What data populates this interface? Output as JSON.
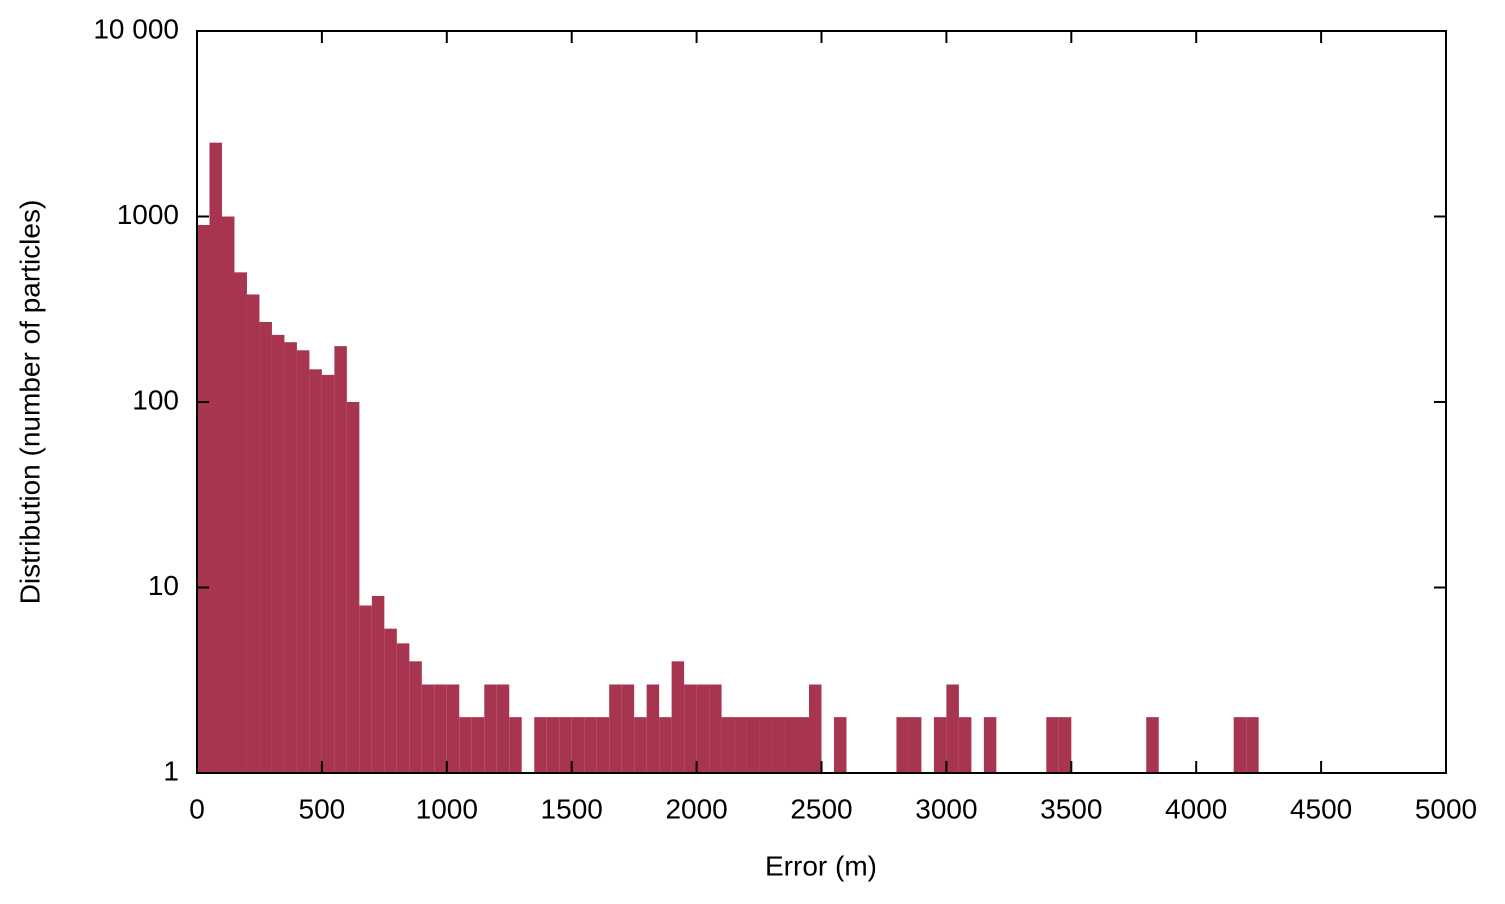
{
  "chart_data": {
    "type": "histogram",
    "x_label": "Error (m)",
    "y_label": "Distribution (number of particles)",
    "color": "#a8354f",
    "log_y": true,
    "bins": [
      0,
      50,
      100,
      150,
      200,
      250,
      300,
      350,
      400,
      450,
      500,
      550,
      600,
      650,
      700,
      750,
      800,
      850,
      900,
      950,
      1000,
      1050,
      1100,
      1150,
      1200,
      1250,
      1300,
      1350,
      1400,
      1450,
      1500,
      1550,
      1600,
      1650,
      1700,
      1750,
      1800,
      1850,
      1900,
      1950,
      2000,
      2050,
      2100,
      2150,
      2200,
      2250,
      2300,
      2350,
      2400,
      2450,
      2500,
      2550,
      2600,
      2650,
      2700,
      2750,
      2800,
      2850,
      2900,
      2950,
      3000,
      3050,
      3100,
      3150,
      3200,
      3250,
      3300,
      3350,
      3400,
      3450,
      3500,
      3550,
      3600,
      3650,
      3700,
      3750,
      3800,
      3850,
      3900,
      3950,
      4000,
      4050,
      4100,
      4150,
      4200,
      4250
    ],
    "values": [
      900,
      2500,
      1000,
      500,
      380,
      270,
      230,
      210,
      190,
      150,
      140,
      200,
      100,
      8,
      9,
      6,
      5,
      4,
      3,
      3,
      3,
      2,
      2,
      3,
      3,
      2,
      0,
      2,
      2,
      2,
      2,
      2,
      2,
      3,
      3,
      2,
      3,
      2,
      4,
      3,
      3,
      3,
      2,
      2,
      2,
      2,
      2,
      2,
      2,
      3,
      1,
      2,
      1,
      0,
      0,
      0,
      2,
      2,
      0,
      2,
      3,
      2,
      0,
      2,
      0,
      0,
      0,
      0,
      2,
      2,
      0,
      0,
      0,
      0,
      0,
      0,
      2,
      0,
      0,
      0,
      0,
      0,
      0,
      2,
      2
    ],
    "xlim": [
      0,
      5000
    ],
    "xticks": [
      0,
      500,
      1000,
      1500,
      2000,
      2500,
      3000,
      3500,
      4000,
      4500,
      5000
    ],
    "ylim": [
      1,
      10000
    ],
    "yticks": [
      1,
      10,
      100,
      1000,
      {
        "value": 10000,
        "label": "10 000"
      }
    ]
  }
}
